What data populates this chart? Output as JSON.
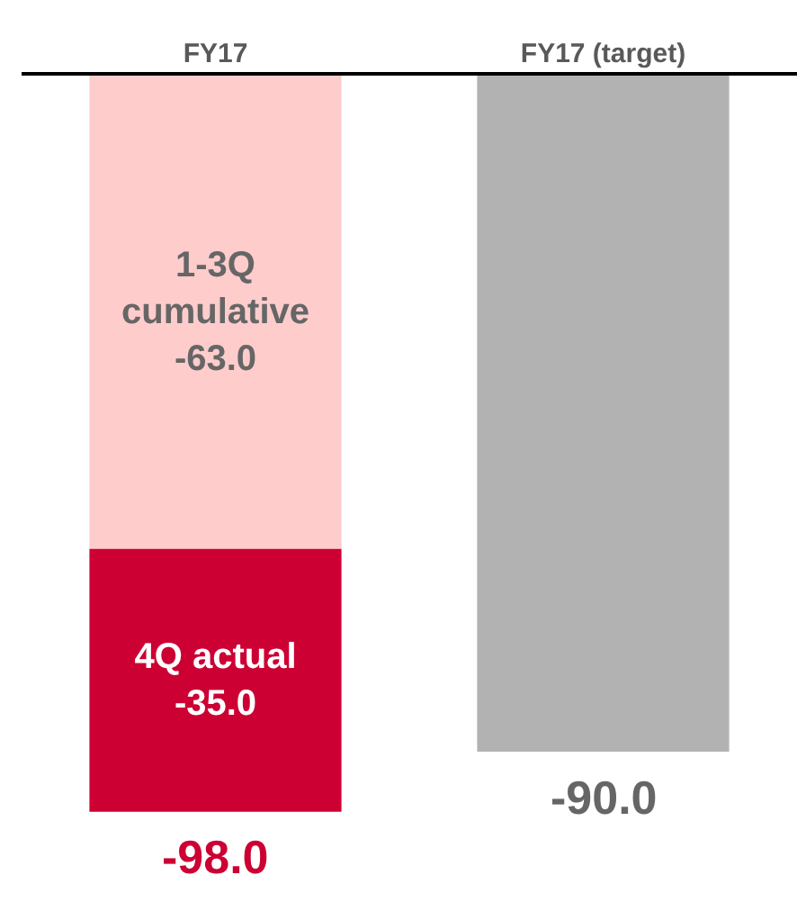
{
  "chart_data": {
    "type": "bar",
    "stacked": true,
    "categories": [
      "FY17",
      "FY17 (target)"
    ],
    "series": [
      {
        "name": "1-3Q cumulative",
        "color": "#ffcccc",
        "values": [
          -63.0,
          null
        ],
        "value_labels": [
          "-63.0",
          null
        ]
      },
      {
        "name": "4Q actual",
        "color": "#cc0033",
        "values": [
          -35.0,
          null
        ],
        "value_labels": [
          "-35.0",
          null
        ]
      },
      {
        "color": "#b2b2b2",
        "values": [
          null,
          -90.0
        ]
      }
    ],
    "totals": [
      "-98.0",
      "-90.0"
    ],
    "ylim": [
      -110,
      0
    ],
    "tick_labels": "x"
  }
}
